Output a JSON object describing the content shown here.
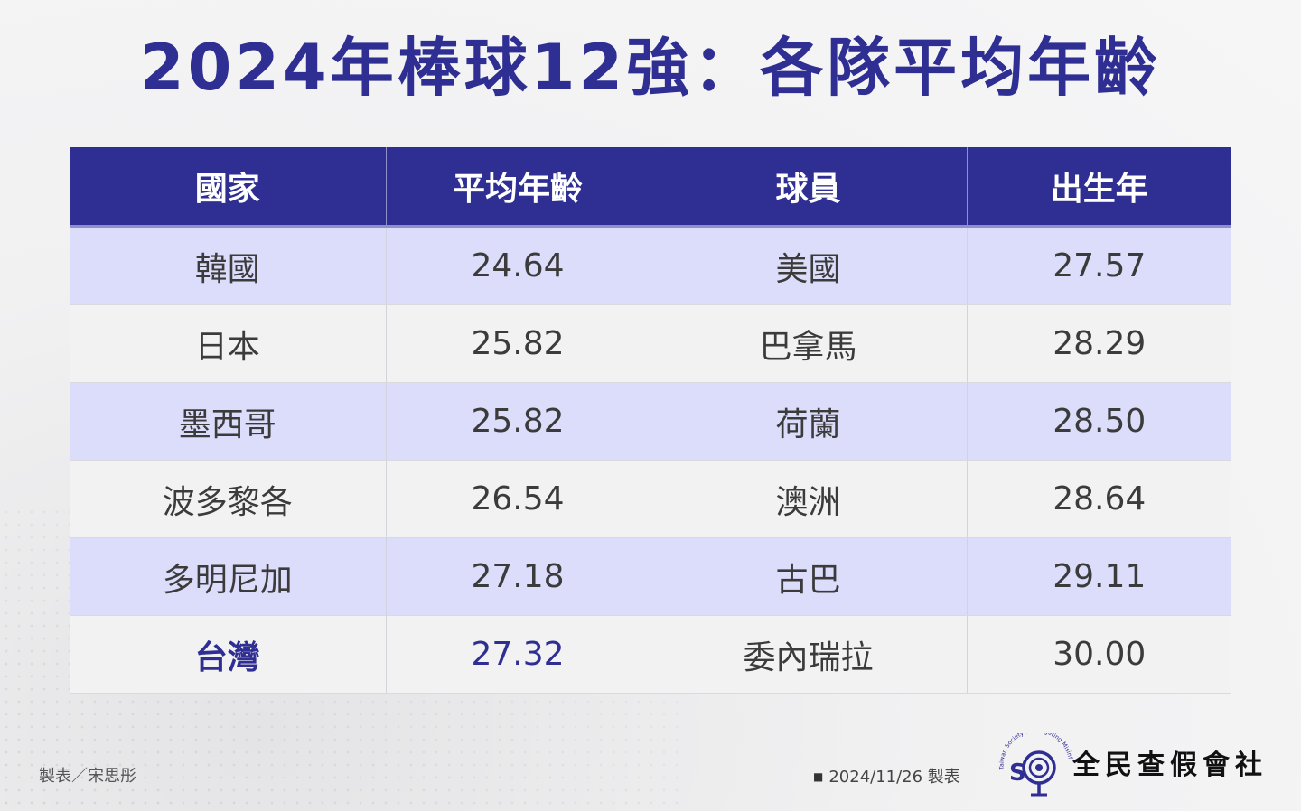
{
  "title": "2024年棒球12強：各隊平均年齡",
  "table": {
    "headers": [
      "國家",
      "平均年齡",
      "球員",
      "出生年"
    ],
    "rows": [
      [
        "韓國",
        "24.64",
        "美國",
        "27.57"
      ],
      [
        "日本",
        "25.82",
        "巴拿馬",
        "28.29"
      ],
      [
        "墨西哥",
        "25.82",
        "荷蘭",
        "28.50"
      ],
      [
        "波多黎各",
        "26.54",
        "澳洲",
        "28.64"
      ],
      [
        "多明尼加",
        "27.18",
        "古巴",
        "29.11"
      ],
      [
        "台灣",
        "27.32",
        "委內瑞拉",
        "30.00"
      ]
    ],
    "highlight_color": "#2e2e93",
    "row_colors": [
      "#dcdcfb",
      "#f2f2f3"
    ]
  },
  "footer": {
    "credit": "製表／宋思彤",
    "date": "2024/11/26 製表",
    "org_name": "全民查假會社",
    "logo_text": "Taiwan Society for Targeting Misinformation",
    "logo_icon": "magnifier-logo-icon"
  }
}
